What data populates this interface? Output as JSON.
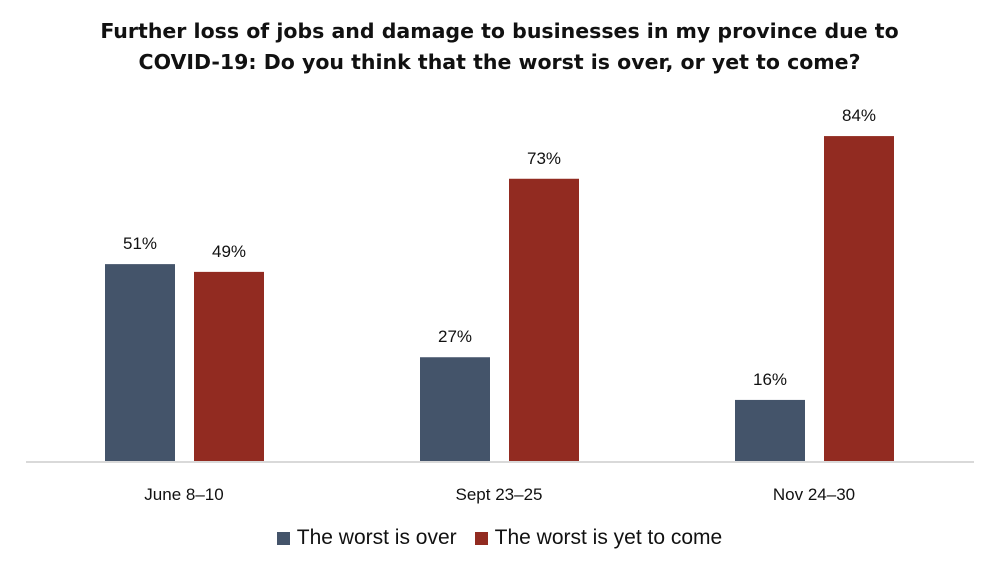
{
  "chart_data": {
    "type": "bar",
    "title_lines": [
      "Further loss of jobs and damage to businesses in my province due to",
      "COVID-19: Do you think that the worst is over, or yet to come?"
    ],
    "categories": [
      "June 8–10",
      "Sept 23–25",
      "Nov 24–30"
    ],
    "series": [
      {
        "name": "The worst is over",
        "values": [
          51,
          27,
          16
        ],
        "labels": [
          "51%",
          "27%",
          "16%"
        ],
        "color": "#44546a"
      },
      {
        "name": "The worst is yet to come",
        "values": [
          49,
          73,
          84
        ],
        "labels": [
          "49%",
          "73%",
          "84%"
        ],
        "color": "#922b21"
      }
    ],
    "ylim": [
      0,
      100
    ],
    "grid": false,
    "legend_position": "bottom"
  }
}
